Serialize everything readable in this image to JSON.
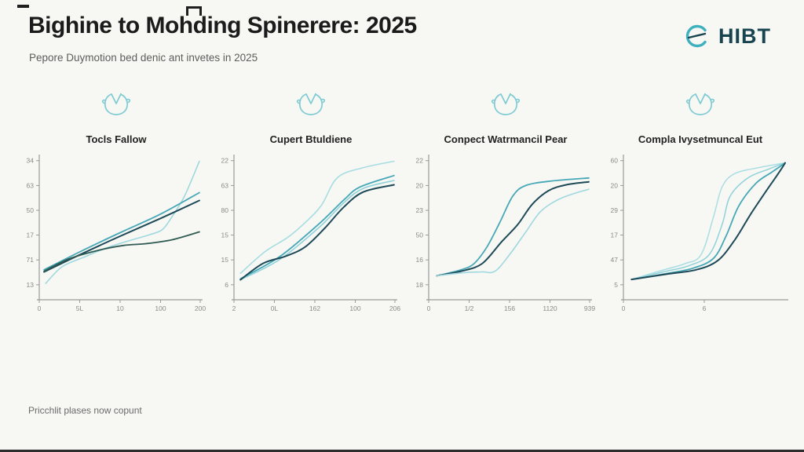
{
  "page": {
    "bottom_bar_color": "#2d2d2d",
    "background": "#f7f7f4"
  },
  "header": {
    "title": "Bighine to Mohding Spinerere: 2025",
    "subtitle": "Pepore Duymotion bed denic ant invetes in 2025",
    "logo_text": "HIBT",
    "logo_accent": "#3fb0bd",
    "logo_text_color": "#17444f"
  },
  "footer": {
    "note": "Pricchlit plases now copunt"
  },
  "colors": {
    "axis": "#9a9a9a",
    "tick_label": "#8a8a8a",
    "icon_teal": "#7ecbd3",
    "navy": "#1e4a58",
    "teal": "#46a8b6",
    "light_cyan": "#8fd2da",
    "lightest_cyan": "#aadee3",
    "dark_green": "#2f5b53"
  },
  "chart_data": [
    {
      "type": "line",
      "title": "Tocls Fallow",
      "icon": "clock-sketch",
      "y_ticks": [
        {
          "label": "34",
          "pos": 0.026
        },
        {
          "label": "63",
          "pos": 0.2
        },
        {
          "label": "50",
          "pos": 0.374
        },
        {
          "label": "17",
          "pos": 0.547
        },
        {
          "label": "71",
          "pos": 0.721
        },
        {
          "label": "13",
          "pos": 0.895
        }
      ],
      "x_ticks": [
        {
          "label": "0",
          "pos": 0.0
        },
        {
          "label": "5L",
          "pos": 0.25
        },
        {
          "label": "10",
          "pos": 0.5
        },
        {
          "label": "100",
          "pos": 0.75
        },
        {
          "label": "200",
          "pos": 0.995
        }
      ],
      "axis_full_width": false,
      "series": [
        {
          "name": "light-line",
          "color": "#9fd8de",
          "width": 1.6,
          "points": [
            [
              0.04,
              0.885
            ],
            [
              0.14,
              0.77
            ],
            [
              0.28,
              0.7
            ],
            [
              0.42,
              0.635
            ],
            [
              0.56,
              0.585
            ],
            [
              0.68,
              0.545
            ],
            [
              0.76,
              0.51
            ],
            [
              0.82,
              0.42
            ],
            [
              0.9,
              0.27
            ],
            [
              0.99,
              0.03
            ]
          ]
        },
        {
          "name": "teal-line",
          "color": "#46a8b6",
          "width": 1.8,
          "points": [
            [
              0.03,
              0.79
            ],
            [
              0.25,
              0.665
            ],
            [
              0.5,
              0.53
            ],
            [
              0.75,
              0.4
            ],
            [
              0.99,
              0.25
            ]
          ]
        },
        {
          "name": "navy-line",
          "color": "#1e4a58",
          "width": 2.0,
          "points": [
            [
              0.03,
              0.805
            ],
            [
              0.25,
              0.685
            ],
            [
              0.5,
              0.555
            ],
            [
              0.75,
              0.43
            ],
            [
              0.99,
              0.305
            ]
          ]
        },
        {
          "name": "darkgreen-line",
          "color": "#2f5b53",
          "width": 1.8,
          "points": [
            [
              0.03,
              0.8
            ],
            [
              0.18,
              0.715
            ],
            [
              0.36,
              0.655
            ],
            [
              0.52,
              0.62
            ],
            [
              0.66,
              0.607
            ],
            [
              0.82,
              0.58
            ],
            [
              0.99,
              0.525
            ]
          ]
        }
      ]
    },
    {
      "type": "line",
      "title": "Cupert Btuldiene",
      "icon": "clock-sketch",
      "y_ticks": [
        {
          "label": "22",
          "pos": 0.026
        },
        {
          "label": "63",
          "pos": 0.2
        },
        {
          "label": "80",
          "pos": 0.374
        },
        {
          "label": "15",
          "pos": 0.547
        },
        {
          "label": "15",
          "pos": 0.721
        },
        {
          "label": "6",
          "pos": 0.895
        }
      ],
      "x_ticks": [
        {
          "label": "2",
          "pos": 0.0
        },
        {
          "label": "0L",
          "pos": 0.25
        },
        {
          "label": "162",
          "pos": 0.5
        },
        {
          "label": "100",
          "pos": 0.75
        },
        {
          "label": "206",
          "pos": 0.995
        }
      ],
      "axis_full_width": false,
      "series": [
        {
          "name": "lightest-line",
          "color": "#a7dde2",
          "width": 1.6,
          "points": [
            [
              0.04,
              0.815
            ],
            [
              0.19,
              0.665
            ],
            [
              0.33,
              0.565
            ],
            [
              0.44,
              0.46
            ],
            [
              0.54,
              0.34
            ],
            [
              0.64,
              0.145
            ],
            [
              0.8,
              0.075
            ],
            [
              0.99,
              0.03
            ]
          ]
        },
        {
          "name": "light-line",
          "color": "#8fd2da",
          "width": 1.6,
          "points": [
            [
              0.04,
              0.86
            ],
            [
              0.28,
              0.72
            ],
            [
              0.52,
              0.5
            ],
            [
              0.68,
              0.32
            ],
            [
              0.8,
              0.22
            ],
            [
              0.99,
              0.165
            ]
          ]
        },
        {
          "name": "teal-line",
          "color": "#46a8b6",
          "width": 1.8,
          "points": [
            [
              0.04,
              0.853
            ],
            [
              0.28,
              0.7
            ],
            [
              0.52,
              0.474
            ],
            [
              0.68,
              0.3
            ],
            [
              0.78,
              0.21
            ],
            [
              0.99,
              0.13
            ]
          ]
        },
        {
          "name": "navy-line",
          "color": "#1e4a58",
          "width": 2.0,
          "points": [
            [
              0.04,
              0.86
            ],
            [
              0.18,
              0.745
            ],
            [
              0.32,
              0.695
            ],
            [
              0.44,
              0.63
            ],
            [
              0.56,
              0.5
            ],
            [
              0.68,
              0.35
            ],
            [
              0.8,
              0.245
            ],
            [
              0.99,
              0.195
            ]
          ]
        }
      ]
    },
    {
      "type": "line",
      "title": "Conpect Watrmancil Pear",
      "icon": "clock-sketch",
      "y_ticks": [
        {
          "label": "22",
          "pos": 0.026
        },
        {
          "label": "20",
          "pos": 0.2
        },
        {
          "label": "23",
          "pos": 0.374
        },
        {
          "label": "50",
          "pos": 0.547
        },
        {
          "label": "16",
          "pos": 0.721
        },
        {
          "label": "18",
          "pos": 0.895
        }
      ],
      "x_ticks": [
        {
          "label": "0",
          "pos": 0.0
        },
        {
          "label": "1/2",
          "pos": 0.25
        },
        {
          "label": "156",
          "pos": 0.5
        },
        {
          "label": "1120",
          "pos": 0.75
        },
        {
          "label": "939",
          "pos": 0.995
        }
      ],
      "axis_full_width": false,
      "series": [
        {
          "name": "teal-sigmoid",
          "color": "#46a8b6",
          "width": 1.8,
          "points": [
            [
              0.05,
              0.832
            ],
            [
              0.2,
              0.79
            ],
            [
              0.28,
              0.747
            ],
            [
              0.36,
              0.63
            ],
            [
              0.44,
              0.458
            ],
            [
              0.52,
              0.274
            ],
            [
              0.6,
              0.2
            ],
            [
              0.76,
              0.168
            ],
            [
              0.99,
              0.147
            ]
          ]
        },
        {
          "name": "navy-sigmoid",
          "color": "#1e4a58",
          "width": 2.0,
          "points": [
            [
              0.05,
              0.832
            ],
            [
              0.2,
              0.8
            ],
            [
              0.33,
              0.747
            ],
            [
              0.45,
              0.595
            ],
            [
              0.55,
              0.474
            ],
            [
              0.64,
              0.332
            ],
            [
              0.74,
              0.237
            ],
            [
              0.85,
              0.195
            ],
            [
              0.99,
              0.174
            ]
          ]
        },
        {
          "name": "light-sigmoid",
          "color": "#9fd8de",
          "width": 1.6,
          "points": [
            [
              0.05,
              0.832
            ],
            [
              0.22,
              0.81
            ],
            [
              0.33,
              0.805
            ],
            [
              0.41,
              0.8
            ],
            [
              0.5,
              0.684
            ],
            [
              0.6,
              0.526
            ],
            [
              0.69,
              0.384
            ],
            [
              0.79,
              0.305
            ],
            [
              0.88,
              0.263
            ],
            [
              0.99,
              0.226
            ]
          ]
        }
      ]
    },
    {
      "type": "line",
      "title": "Compla Ivysetmuncal Eut",
      "icon": "clock-sketch",
      "y_ticks": [
        {
          "label": "60",
          "pos": 0.026
        },
        {
          "label": "20",
          "pos": 0.2
        },
        {
          "label": "29",
          "pos": 0.374
        },
        {
          "label": "17",
          "pos": 0.547
        },
        {
          "label": "47",
          "pos": 0.721
        },
        {
          "label": "5",
          "pos": 0.895
        }
      ],
      "x_ticks": [
        {
          "label": "0",
          "pos": 0.0
        },
        {
          "label": "6",
          "pos": 0.5
        }
      ],
      "axis_full_width": true,
      "series": [
        {
          "name": "lightest-sigmoid",
          "color": "#aadee3",
          "width": 1.5,
          "points": [
            [
              0.05,
              0.858
            ],
            [
              0.22,
              0.8
            ],
            [
              0.38,
              0.747
            ],
            [
              0.48,
              0.684
            ],
            [
              0.557,
              0.42
            ],
            [
              0.61,
              0.21
            ],
            [
              0.69,
              0.116
            ],
            [
              0.84,
              0.074
            ],
            [
              1,
              0.042
            ]
          ]
        },
        {
          "name": "light-sigmoid",
          "color": "#8fd2da",
          "width": 1.5,
          "points": [
            [
              0.05,
              0.858
            ],
            [
              0.245,
              0.805
            ],
            [
              0.4,
              0.763
            ],
            [
              0.53,
              0.684
            ],
            [
              0.61,
              0.474
            ],
            [
              0.66,
              0.274
            ],
            [
              0.77,
              0.147
            ],
            [
              0.9,
              0.084
            ],
            [
              1,
              0.042
            ]
          ]
        },
        {
          "name": "teal-sigmoid",
          "color": "#46a8b6",
          "width": 1.8,
          "points": [
            [
              0.05,
              0.858
            ],
            [
              0.27,
              0.816
            ],
            [
              0.43,
              0.779
            ],
            [
              0.557,
              0.71
            ],
            [
              0.635,
              0.553
            ],
            [
              0.714,
              0.342
            ],
            [
              0.82,
              0.184
            ],
            [
              0.92,
              0.105
            ],
            [
              1,
              0.042
            ]
          ]
        },
        {
          "name": "navy-sigmoid",
          "color": "#1e4a58",
          "width": 2.0,
          "points": [
            [
              0.05,
              0.858
            ],
            [
              0.27,
              0.82
            ],
            [
              0.45,
              0.79
            ],
            [
              0.583,
              0.726
            ],
            [
              0.69,
              0.579
            ],
            [
              0.79,
              0.395
            ],
            [
              0.9,
              0.21
            ],
            [
              0.958,
              0.116
            ],
            [
              1,
              0.042
            ]
          ]
        }
      ]
    }
  ]
}
